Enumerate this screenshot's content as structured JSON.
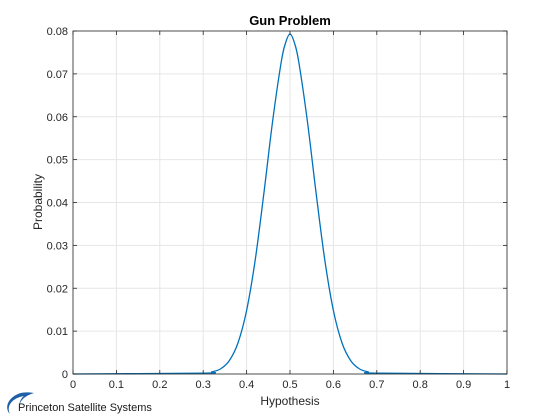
{
  "chart_data": {
    "type": "line",
    "title": "Gun Problem",
    "xlabel": "Hypothesis",
    "ylabel": "Probability",
    "xlim": [
      0,
      1
    ],
    "ylim": [
      0,
      0.08
    ],
    "x_ticks": [
      "0",
      "0.1",
      "0.2",
      "0.3",
      "0.4",
      "0.5",
      "0.6",
      "0.7",
      "0.8",
      "0.9",
      "1"
    ],
    "y_ticks": [
      "0",
      "0.01",
      "0.02",
      "0.03",
      "0.04",
      "0.05",
      "0.06",
      "0.07",
      "0.08"
    ],
    "grid": true,
    "series": [
      {
        "color": "#0072BD",
        "x": [
          0,
          0.3,
          0.32,
          0.34,
          0.36,
          0.38,
          0.4,
          0.42,
          0.44,
          0.46,
          0.48,
          0.49,
          0.5,
          0.51,
          0.52,
          0.54,
          0.56,
          0.58,
          0.6,
          0.62,
          0.64,
          0.66,
          0.68,
          0.7,
          1
        ],
        "y": [
          0,
          0.0002,
          0.0005,
          0.0012,
          0.0031,
          0.0072,
          0.0148,
          0.0267,
          0.0423,
          0.059,
          0.0729,
          0.0773,
          0.0793,
          0.0773,
          0.0729,
          0.059,
          0.0423,
          0.0267,
          0.0148,
          0.0072,
          0.0031,
          0.0012,
          0.0005,
          0.0002,
          0
        ]
      }
    ]
  },
  "logo": {
    "text": "Princeton Satellite Systems",
    "swoosh_color": "#1f5fa8"
  }
}
